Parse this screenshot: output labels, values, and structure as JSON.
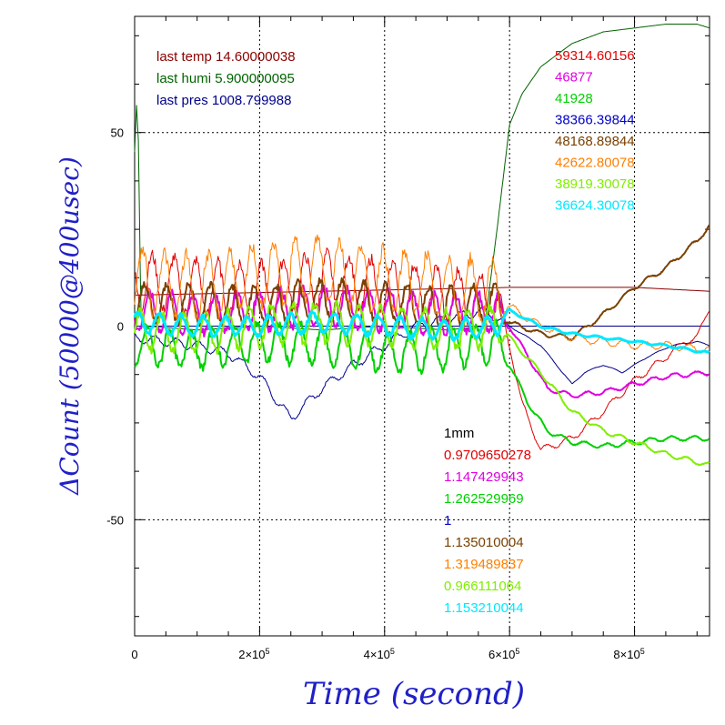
{
  "chart_data": {
    "type": "line",
    "xlabel": "Time (second)",
    "ylabel": "ΔCount (50000@400usec)",
    "xlim": [
      0,
      920000
    ],
    "ylim": [
      -80,
      80
    ],
    "x_ticks": [
      {
        "value": 0,
        "base": "0",
        "exp": ""
      },
      {
        "value": 200000,
        "base": "2×10",
        "exp": "5"
      },
      {
        "value": 400000,
        "base": "4×10",
        "exp": "5"
      },
      {
        "value": 600000,
        "base": "6×10",
        "exp": "5"
      },
      {
        "value": 800000,
        "base": "8×10",
        "exp": "5"
      }
    ],
    "y_ticks": [
      {
        "value": 50,
        "label": "50"
      },
      {
        "value": 0,
        "label": "0"
      },
      {
        "value": -50,
        "label": "-50"
      }
    ],
    "grid": true,
    "annotations_left": [
      {
        "text": "last temp 14.60000038",
        "color": "#8b0000"
      },
      {
        "text": "last humi 5.900000095",
        "color": "#006400"
      },
      {
        "text": "last pres 1008.799988",
        "color": "#00008b"
      }
    ],
    "annotations_right": [
      {
        "text": "59314.60156",
        "color": "#e00000"
      },
      {
        "text": "46877",
        "color": "#e000e0"
      },
      {
        "text": "41928",
        "color": "#00d000"
      },
      {
        "text": "38366.39844",
        "color": "#0000c8"
      },
      {
        "text": "48168.89844",
        "color": "#7a4000"
      },
      {
        "text": "42622.80078",
        "color": "#ff7f00"
      },
      {
        "text": "38919.30078",
        "color": "#80ee00"
      },
      {
        "text": "36624.30078",
        "color": "#00e8ff"
      }
    ],
    "annotations_lower": [
      {
        "text": "1mm",
        "color": "#000000"
      },
      {
        "text": "0.9709650278",
        "color": "#e00000"
      },
      {
        "text": "1.147429943",
        "color": "#e000e0"
      },
      {
        "text": "1.262529969",
        "color": "#00d000"
      },
      {
        "text": "1",
        "color": "#0000c8"
      },
      {
        "text": "1.135010004",
        "color": "#7a4000"
      },
      {
        "text": "1.319489837",
        "color": "#ff7f00"
      },
      {
        "text": "0.966111064",
        "color": "#80ee00"
      },
      {
        "text": "1.153210044",
        "color": "#00e8ff"
      }
    ],
    "series": [
      {
        "color": "#8b0000",
        "width": 1,
        "osc": 0,
        "x": [
          0,
          600000,
          700000,
          800000,
          920000
        ],
        "y": [
          8,
          10,
          10,
          10,
          9
        ]
      },
      {
        "color": "#006400",
        "width": 1,
        "osc": 0,
        "x": [
          0,
          3000,
          6000,
          10000,
          20000,
          100000,
          200000,
          300000,
          400000,
          500000,
          560000,
          580000,
          600000,
          620000,
          650000,
          700000,
          750000,
          800000,
          850000,
          900000,
          920000
        ],
        "y": [
          45,
          57,
          48,
          2,
          0,
          -1,
          0,
          -1,
          0,
          -1,
          0,
          25,
          52,
          60,
          67,
          73,
          76,
          77,
          78,
          78,
          77
        ]
      },
      {
        "color": "#00008b",
        "width": 1,
        "osc": 0,
        "x": [
          0,
          600000,
          700000,
          800000,
          920000
        ],
        "y": [
          0,
          0,
          0,
          0,
          0
        ]
      },
      {
        "color": "#00008b",
        "width": 1,
        "osc": 1.2,
        "x": [
          0,
          100000,
          150000,
          200000,
          250000,
          300000,
          350000,
          400000,
          450000,
          500000,
          560000,
          600000,
          650000,
          700000,
          720000,
          750000,
          780000,
          820000,
          860000,
          900000,
          920000
        ],
        "y": [
          -3,
          -5,
          -7,
          -13,
          -24,
          -16,
          -10,
          -5,
          0,
          2,
          4,
          0,
          -5,
          -15,
          -12,
          -10,
          -12,
          -8,
          -5,
          -4,
          -5
        ]
      },
      {
        "color": "#e00000",
        "width": 1,
        "osc": 7,
        "x": [
          0,
          100000,
          200000,
          300000,
          400000,
          500000,
          580000,
          600000,
          620000,
          650000,
          700000,
          750000,
          800000,
          850000,
          880000,
          900000,
          920000
        ],
        "y": [
          12,
          10,
          9,
          12,
          10,
          8,
          6,
          -5,
          -20,
          -32,
          -29,
          -22,
          -14,
          -8,
          -4,
          -3,
          5
        ]
      },
      {
        "color": "#e000e0",
        "width": 2,
        "osc": 5,
        "x": [
          0,
          100000,
          200000,
          300000,
          400000,
          500000,
          580000,
          600000,
          630000,
          660000,
          700000,
          750000,
          800000,
          850000,
          920000
        ],
        "y": [
          4,
          3,
          4,
          5,
          4,
          3,
          4,
          0,
          -8,
          -16,
          -18,
          -17,
          -15,
          -13,
          -12
        ]
      },
      {
        "color": "#00d000",
        "width": 2,
        "osc": 5,
        "x": [
          0,
          100000,
          200000,
          300000,
          400000,
          500000,
          580000,
          600000,
          630000,
          660000,
          700000,
          750000,
          800000,
          850000,
          920000
        ],
        "y": [
          -5,
          -6,
          -4,
          -5,
          -7,
          -6,
          -4,
          -10,
          -20,
          -27,
          -30,
          -31,
          -30,
          -29,
          -29
        ]
      },
      {
        "color": "#7a4000",
        "width": 2,
        "osc": 5,
        "x": [
          0,
          100000,
          200000,
          300000,
          400000,
          500000,
          580000,
          600000,
          650000,
          700000,
          750000,
          800000,
          850000,
          900000,
          920000
        ],
        "y": [
          6,
          6,
          5,
          7,
          6,
          5,
          6,
          1,
          -2,
          -3,
          3,
          10,
          15,
          22,
          26
        ]
      },
      {
        "color": "#ff7f00",
        "width": 1,
        "osc": 8,
        "x": [
          0,
          100000,
          200000,
          300000,
          400000,
          500000,
          580000,
          600000,
          650000,
          700000,
          750000,
          800000,
          850000,
          920000
        ],
        "y": [
          12,
          10,
          13,
          15,
          12,
          10,
          9,
          5,
          0,
          -3,
          -4,
          -5,
          -5,
          -6
        ]
      },
      {
        "color": "#80ee00",
        "width": 2,
        "osc": 5,
        "x": [
          0,
          100000,
          200000,
          300000,
          400000,
          500000,
          580000,
          600000,
          650000,
          700000,
          750000,
          800000,
          850000,
          920000
        ],
        "y": [
          -1,
          -2,
          0,
          1,
          0,
          -1,
          0,
          -3,
          -12,
          -22,
          -27,
          -30,
          -33,
          -36
        ]
      },
      {
        "color": "#00e8ff",
        "width": 3,
        "osc": 2.5,
        "x": [
          0,
          100000,
          200000,
          300000,
          400000,
          500000,
          580000,
          600000,
          650000,
          700000,
          750000,
          800000,
          850000,
          920000
        ],
        "y": [
          1,
          0,
          0,
          1,
          0,
          -1,
          0,
          4,
          0,
          -2,
          -3,
          -4,
          -5,
          -7
        ]
      }
    ]
  }
}
